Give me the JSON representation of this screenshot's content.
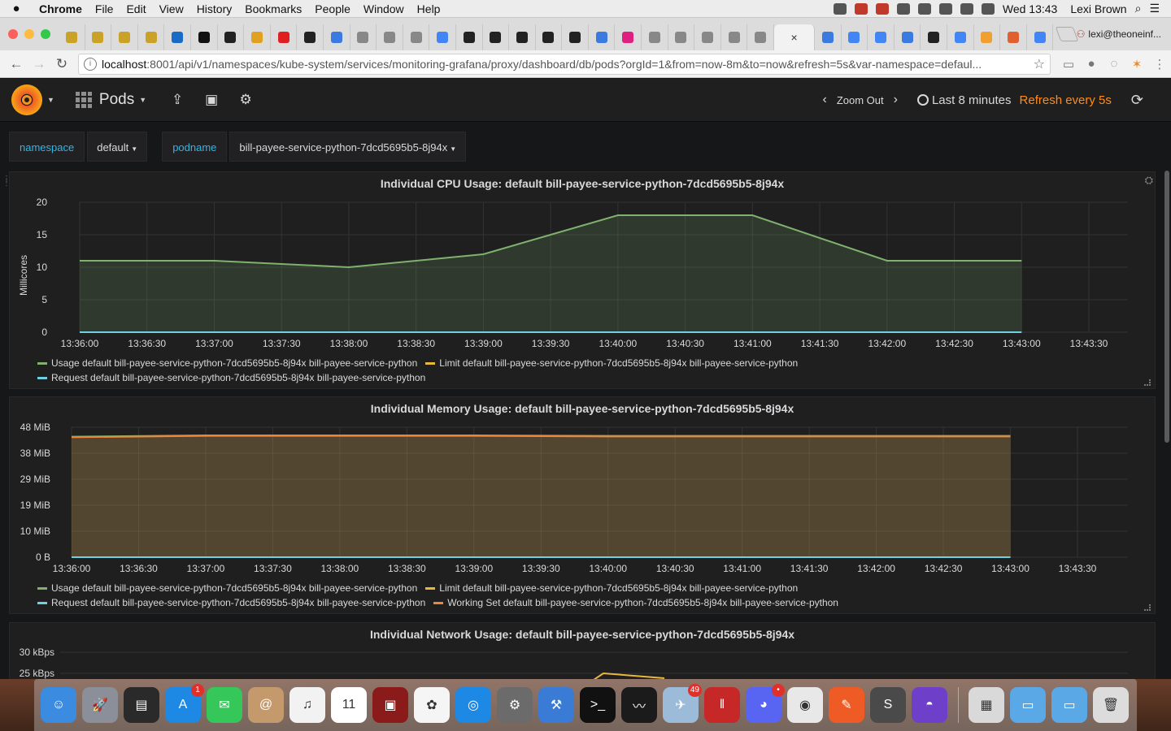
{
  "menubar": {
    "app": "Chrome",
    "items": [
      "File",
      "Edit",
      "View",
      "History",
      "Bookmarks",
      "People",
      "Window",
      "Help"
    ],
    "clock": "Wed 13:43",
    "user": "Lexi Brown"
  },
  "tabs": {
    "favicon_colors": [
      "#c9a227",
      "#c9a227",
      "#c9a227",
      "#c9a227",
      "#1a6bc8",
      "#111111",
      "#222222",
      "#e0a020",
      "#e02020",
      "#222222",
      "#3b7ae0",
      "#888888",
      "#888888",
      "#888888",
      "#4285f4",
      "#222222",
      "#222222",
      "#222222",
      "#222222",
      "#222222",
      "#3b7ae0",
      "#e02080",
      "#888888",
      "#888888",
      "#888888",
      "#888888",
      "#888888",
      "#3b7ae0",
      "#4285f4",
      "#4285f4",
      "#3b7ae0",
      "#222222",
      "#4285f4",
      "#f0a030",
      "#e06030",
      "#4285f4"
    ],
    "active_close": "×",
    "profile": "lexi@theoneinf..."
  },
  "toolbar": {
    "url_host": "localhost",
    "url_rest": ":8001/api/v1/namespaces/kube-system/services/monitoring-grafana/proxy/dashboard/db/pods?orgId=1&from=now-8m&to=now&refresh=5s&var-namespace=defaul..."
  },
  "grafana": {
    "dashboard_title": "Pods",
    "zoom_out": "Zoom Out",
    "time_range": "Last 8 minutes",
    "refresh": "Refresh every 5s"
  },
  "variables": [
    {
      "label": "namespace",
      "value": "default"
    },
    {
      "label": "podname",
      "value": "bill-payee-service-python-7dcd5695b5-8j94x"
    }
  ],
  "panels": {
    "cpu": {
      "title": "Individual CPU Usage: default bill-payee-service-python-7dcd5695b5-8j94x",
      "ylabel": "Millicores",
      "legend": [
        {
          "name": "Usage default bill-payee-service-python-7dcd5695b5-8j94x bill-payee-service-python",
          "color": "#7eb26d"
        },
        {
          "name": "Limit default bill-payee-service-python-7dcd5695b5-8j94x bill-payee-service-python",
          "color": "#eab839"
        },
        {
          "name": "Request default bill-payee-service-python-7dcd5695b5-8j94x bill-payee-service-python",
          "color": "#6ed0e0"
        }
      ]
    },
    "memory": {
      "title": "Individual Memory Usage: default bill-payee-service-python-7dcd5695b5-8j94x",
      "legend": [
        {
          "name": "Usage default bill-payee-service-python-7dcd5695b5-8j94x bill-payee-service-python",
          "color": "#7eb26d"
        },
        {
          "name": "Limit default bill-payee-service-python-7dcd5695b5-8j94x bill-payee-service-python",
          "color": "#eab839"
        },
        {
          "name": "Request default bill-payee-service-python-7dcd5695b5-8j94x bill-payee-service-python",
          "color": "#6ed0e0"
        },
        {
          "name": "Working Set default bill-payee-service-python-7dcd5695b5-8j94x bill-payee-service-python",
          "color": "#ef843c"
        }
      ]
    },
    "network": {
      "title": "Individual Network Usage: default bill-payee-service-python-7dcd5695b5-8j94x"
    }
  },
  "chart_data": [
    {
      "type": "area",
      "title": "Individual CPU Usage: default bill-payee-service-python-7dcd5695b5-8j94x",
      "ylabel": "Millicores",
      "ylim": [
        0,
        20
      ],
      "yticks": [
        "0",
        "5",
        "10",
        "15",
        "20"
      ],
      "xticks": [
        "13:36:00",
        "13:36:30",
        "13:37:00",
        "13:37:30",
        "13:38:00",
        "13:38:30",
        "13:39:00",
        "13:39:30",
        "13:40:00",
        "13:40:30",
        "13:41:00",
        "13:41:30",
        "13:42:00",
        "13:42:30",
        "13:43:00",
        "13:43:30"
      ],
      "grid": true,
      "series": [
        {
          "name": "Usage default bill-payee-service-python-7dcd5695b5-8j94x bill-payee-service-python",
          "color": "#7eb26d",
          "x": [
            "13:36:00",
            "13:37:00",
            "13:38:00",
            "13:39:00",
            "13:40:00",
            "13:41:00",
            "13:42:00",
            "13:43:00"
          ],
          "values": [
            11,
            11,
            10,
            12,
            18,
            18,
            11,
            11
          ]
        },
        {
          "name": "Request default bill-payee-service-python-7dcd5695b5-8j94x bill-payee-service-python",
          "color": "#6ed0e0",
          "x": [
            "13:36:00",
            "13:43:00"
          ],
          "values": [
            0,
            0
          ]
        }
      ]
    },
    {
      "type": "area",
      "title": "Individual Memory Usage: default bill-payee-service-python-7dcd5695b5-8j94x",
      "ylim": [
        0,
        48
      ],
      "yticks": [
        "0 B",
        "10 MiB",
        "19 MiB",
        "29 MiB",
        "38 MiB",
        "48 MiB"
      ],
      "xticks": [
        "13:36:00",
        "13:36:30",
        "13:37:00",
        "13:37:30",
        "13:38:00",
        "13:38:30",
        "13:39:00",
        "13:39:30",
        "13:40:00",
        "13:40:30",
        "13:41:00",
        "13:41:30",
        "13:42:00",
        "13:42:30",
        "13:43:00",
        "13:43:30"
      ],
      "grid": true,
      "series": [
        {
          "name": "Usage default bill-payee-service-python-7dcd5695b5-8j94x bill-payee-service-python",
          "color": "#7eb26d",
          "x": [
            "13:36:00",
            "13:37:00",
            "13:38:00",
            "13:39:00",
            "13:40:00",
            "13:41:00",
            "13:42:00",
            "13:43:00"
          ],
          "values": [
            44.5,
            45,
            45,
            45,
            44.8,
            44.8,
            44.8,
            44.8
          ]
        },
        {
          "name": "Working Set default bill-payee-service-python-7dcd5695b5-8j94x bill-payee-service-python",
          "color": "#ef843c",
          "x": [
            "13:36:00",
            "13:37:00",
            "13:38:00",
            "13:39:00",
            "13:40:00",
            "13:41:00",
            "13:42:00",
            "13:43:00"
          ],
          "values": [
            44.3,
            44.8,
            44.8,
            44.8,
            44.6,
            44.6,
            44.6,
            44.6
          ]
        },
        {
          "name": "Request default bill-payee-service-python-7dcd5695b5-8j94x bill-payee-service-python",
          "color": "#6ed0e0",
          "x": [
            "13:36:00",
            "13:43:00"
          ],
          "values": [
            0,
            0
          ]
        }
      ]
    },
    {
      "type": "line",
      "title": "Individual Network Usage: default bill-payee-service-python-7dcd5695b5-8j94x",
      "yticks": [
        "30 kBps",
        "25 kBps"
      ]
    }
  ],
  "dock": {
    "apps": [
      {
        "name": "finder",
        "color": "#3b8be0",
        "glyph": "☺"
      },
      {
        "name": "launchpad",
        "color": "#8a8f99",
        "glyph": "🚀"
      },
      {
        "name": "activity-viewer",
        "color": "#2a2a2a",
        "glyph": "▤"
      },
      {
        "name": "app-store",
        "color": "#1e88e5",
        "glyph": "A",
        "badge": "1"
      },
      {
        "name": "messages",
        "color": "#35c759",
        "glyph": "✉"
      },
      {
        "name": "contacts",
        "color": "#c49a6c",
        "glyph": "@"
      },
      {
        "name": "music",
        "color": "#f2f2f2",
        "glyph": "♫"
      },
      {
        "name": "calendar",
        "color": "#ffffff",
        "glyph": "11"
      },
      {
        "name": "photo-booth",
        "color": "#8b1a1a",
        "glyph": "▣"
      },
      {
        "name": "photos",
        "color": "#f5f5f5",
        "glyph": "✿"
      },
      {
        "name": "safari",
        "color": "#1e88e5",
        "glyph": "◎"
      },
      {
        "name": "system-preferences",
        "color": "#6b6b6b",
        "glyph": "⚙"
      },
      {
        "name": "xcode",
        "color": "#3a7bd5",
        "glyph": "⚒"
      },
      {
        "name": "terminal",
        "color": "#111111",
        "glyph": ">_"
      },
      {
        "name": "activity-monitor",
        "color": "#1b1b1b",
        "glyph": "〰"
      },
      {
        "name": "mail",
        "color": "#9bbbd8",
        "glyph": "✈",
        "badge": "49"
      },
      {
        "name": "parallels",
        "color": "#c62828",
        "glyph": "‖"
      },
      {
        "name": "discord",
        "color": "#5865f2",
        "glyph": "◕",
        "badge": "•"
      },
      {
        "name": "chrome",
        "color": "#e8e8e8",
        "glyph": "◉"
      },
      {
        "name": "postman",
        "color": "#ef5b25",
        "glyph": "✎"
      },
      {
        "name": "sublime-text",
        "color": "#4a4a4a",
        "glyph": "S"
      },
      {
        "name": "github-desktop",
        "color": "#6e40c9",
        "glyph": "◓"
      },
      {
        "name": "preview",
        "color": "#d9d9d9",
        "glyph": "▦"
      },
      {
        "name": "applications-folder",
        "color": "#5aa9e6",
        "glyph": "▭"
      },
      {
        "name": "downloads-folder",
        "color": "#5aa9e6",
        "glyph": "▭"
      },
      {
        "name": "trash",
        "color": "#dcdcdc",
        "glyph": "🗑"
      }
    ]
  }
}
